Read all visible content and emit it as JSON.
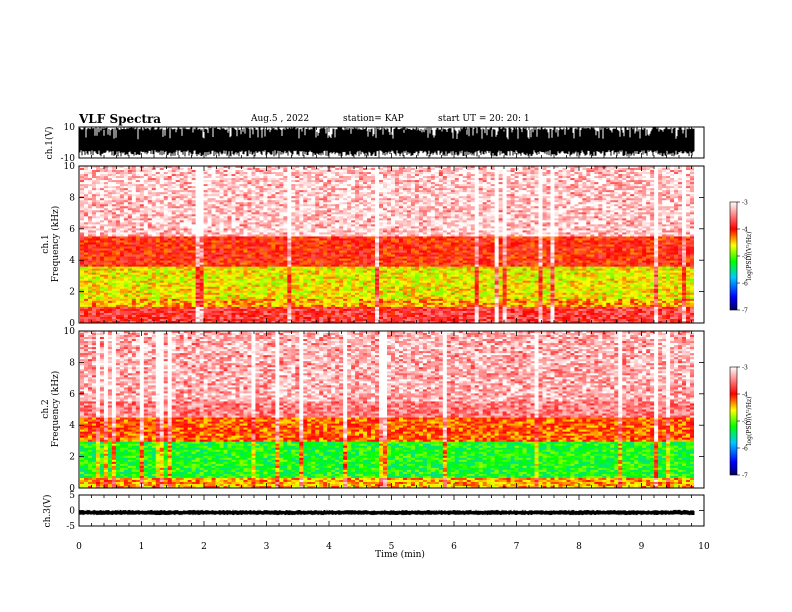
{
  "header": {
    "title": "VLF Spectra",
    "date": "Aug.5 , 2022",
    "station": "station= KAP",
    "start": "start UT = 20: 20: 1"
  },
  "chart_data": [
    {
      "type": "line",
      "id": "ch1-waveform",
      "ylabel": "ch.1(V)",
      "ylim": [
        -10,
        10
      ],
      "yticks": [
        -10,
        10
      ],
      "xlim": [
        0,
        10
      ],
      "description_values": {
        "typical_amplitude": [
          -9,
          10
        ]
      }
    },
    {
      "type": "heatmap",
      "id": "ch1-spectrogram",
      "ylabel": "ch.1",
      "ylabel2": "Frequency (kHz)",
      "ylim": [
        0,
        10
      ],
      "yticks": [
        0,
        2,
        4,
        6,
        8,
        10
      ],
      "xlim": [
        0,
        10
      ],
      "colorbar": {
        "label": "log(PSD)(V²/Hz)",
        "range": [
          -7,
          -3
        ],
        "ticks": [
          -3,
          -4,
          -5,
          -6,
          -7
        ]
      },
      "bands": [
        {
          "freq": [
            0,
            1.0
          ],
          "level": -3.8
        },
        {
          "freq": [
            1.0,
            1.6
          ],
          "level": -4.4
        },
        {
          "freq": [
            1.6,
            3.6
          ],
          "level": -4.6
        },
        {
          "freq": [
            3.6,
            5.5
          ],
          "level": -4.0
        },
        {
          "freq": [
            5.5,
            10
          ],
          "level": -3.4
        }
      ]
    },
    {
      "type": "heatmap",
      "id": "ch2-spectrogram",
      "ylabel": "ch.2",
      "ylabel2": "Frequency (kHz)",
      "ylim": [
        0,
        10
      ],
      "yticks": [
        0,
        2,
        4,
        6,
        8,
        10
      ],
      "xlim": [
        0,
        10
      ],
      "colorbar": {
        "label": "log(PSD)(V²/Hz)",
        "range": [
          -7,
          -3
        ],
        "ticks": [
          -3,
          -4,
          -5,
          -6,
          -7
        ]
      },
      "bands": [
        {
          "freq": [
            0,
            0.7
          ],
          "level": -4.4
        },
        {
          "freq": [
            0.7,
            3.0
          ],
          "level": -5.2
        },
        {
          "freq": [
            3.0,
            4.5
          ],
          "level": -4.2
        },
        {
          "freq": [
            4.5,
            10
          ],
          "level": -3.5
        }
      ]
    },
    {
      "type": "line",
      "id": "ch3-waveform",
      "ylabel": "ch.3(V)",
      "ylim": [
        -5,
        5
      ],
      "yticks": [
        -5,
        0,
        5
      ],
      "xlim": [
        0,
        10
      ],
      "xlabel": "Time (min)",
      "xticks": [
        0,
        1,
        2,
        3,
        4,
        5,
        6,
        7,
        8,
        9,
        10
      ],
      "description_values": {
        "typical_amplitude": [
          -1.5,
          0.2
        ]
      }
    }
  ],
  "colors": {
    "scale": [
      "#000080",
      "#0000ff",
      "#00c8ff",
      "#00ff00",
      "#ffff00",
      "#ff0000",
      "#ffffff"
    ]
  }
}
